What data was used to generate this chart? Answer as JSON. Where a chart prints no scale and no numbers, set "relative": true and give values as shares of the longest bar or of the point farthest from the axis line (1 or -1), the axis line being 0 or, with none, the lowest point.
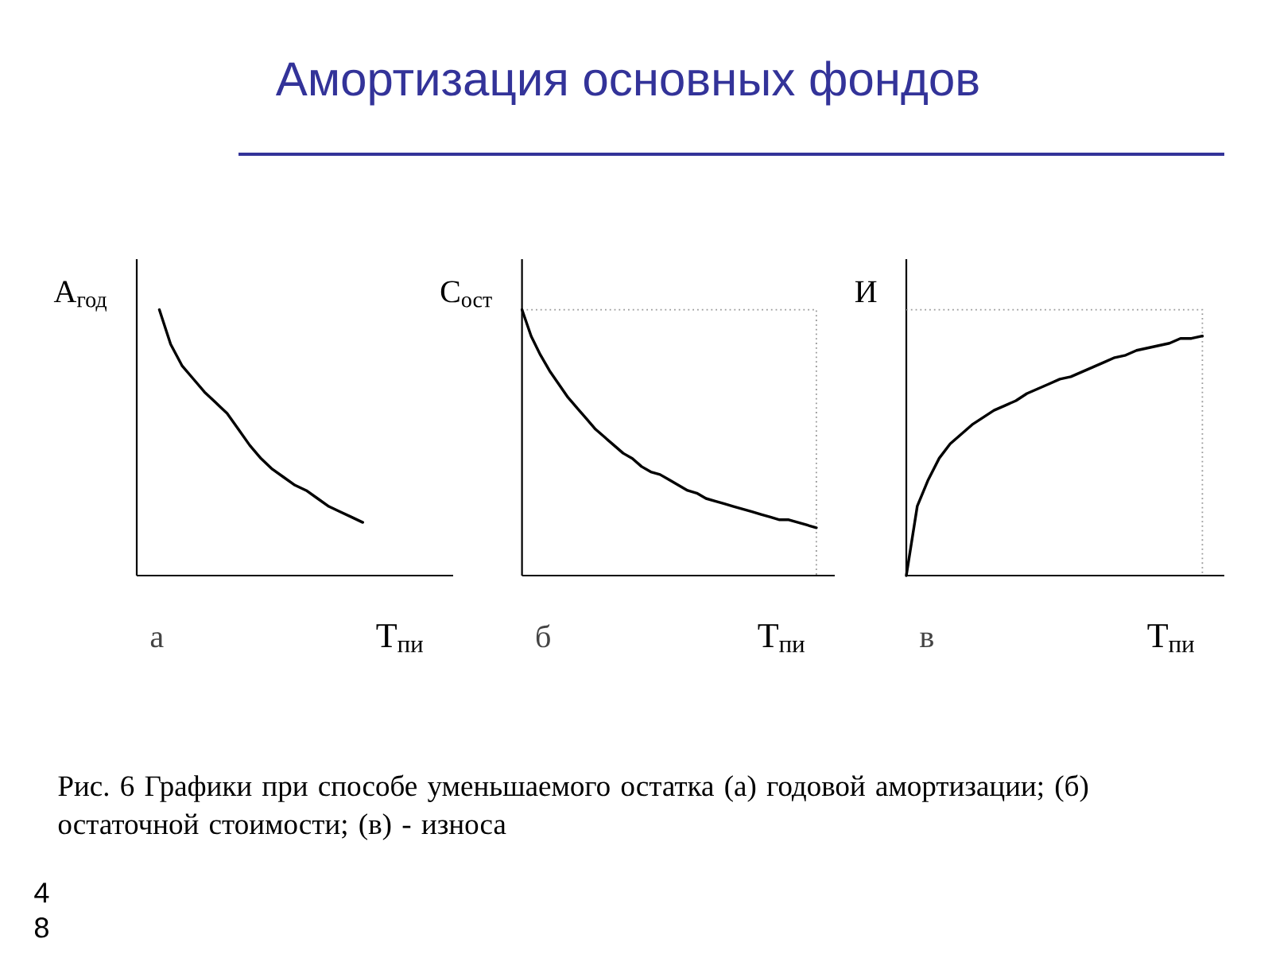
{
  "chart_data": [
    {
      "type": "other",
      "title": "Амортизация основных фондов",
      "annotations": [
        "Рис. 6 Графики при способе уменьшаемого остатка (а) годовой амортизации; (б) остаточной стоимости; (в) - износа",
        "48"
      ]
    },
    {
      "type": "line",
      "title": "а",
      "xlabel": "Т$_{пи}$",
      "ylabel": "А$_{год}$",
      "relative": true,
      "color": "#000000",
      "categories": [
        null,
        null,
        null,
        null,
        null,
        null,
        null,
        null,
        null,
        null,
        null,
        null,
        null,
        null,
        null,
        null,
        null,
        null,
        null,
        null,
        null,
        null,
        null,
        null,
        null,
        null,
        null,
        null,
        null
      ],
      "values": [
        null,
        null,
        1,
        0.87,
        0.79,
        0.74,
        0.69,
        0.65,
        0.61,
        0.55,
        0.49,
        0.44,
        0.4,
        0.37,
        0.34,
        0.32,
        0.29,
        0.26,
        0.24,
        0.22,
        0.2,
        null,
        null,
        null,
        null,
        null,
        null,
        null,
        null
      ]
    },
    {
      "type": "line",
      "title": "б",
      "xlabel": "Т$_{пи}$",
      "ylabel": "С$_{ост}$",
      "relative": true,
      "color": "#000000",
      "categories": [
        null,
        null,
        null,
        null,
        null,
        null,
        null,
        null,
        null,
        null,
        null,
        null,
        null,
        null,
        null,
        null,
        null,
        null,
        null,
        null,
        null,
        null,
        null,
        null,
        null,
        null,
        null,
        null,
        null,
        null,
        null,
        null,
        null,
        null,
        null
      ],
      "values": [
        1,
        0.9,
        0.83,
        0.77,
        0.72,
        0.67,
        0.63,
        0.59,
        0.55,
        0.52,
        0.49,
        0.46,
        0.44,
        0.41,
        0.39,
        0.38,
        0.36,
        0.34,
        0.32,
        0.31,
        0.29,
        0.28,
        0.27,
        0.26,
        0.25,
        0.24,
        0.23,
        0.22,
        0.21,
        0.21,
        0.2,
        0.19,
        0.18,
        null,
        null
      ],
      "ref_lines": [
        {
          "axis": "y",
          "value": 1,
          "line_style": "dotted",
          "color": "#999999"
        }
      ]
    },
    {
      "type": "line",
      "title": "в",
      "xlabel": "Т$_{пи}$",
      "ylabel": "И",
      "relative": true,
      "color": "#000000",
      "categories": [
        null,
        null,
        null,
        null,
        null,
        null,
        null,
        null,
        null,
        null,
        null,
        null,
        null,
        null,
        null,
        null,
        null,
        null,
        null,
        null,
        null,
        null,
        null,
        null,
        null,
        null,
        null,
        null,
        null,
        null
      ],
      "values": [
        0,
        0.29,
        0.4,
        0.49,
        0.55,
        0.59,
        0.63,
        0.66,
        0.69,
        0.71,
        0.73,
        0.76,
        0.78,
        0.8,
        0.82,
        0.83,
        0.85,
        0.87,
        0.89,
        0.91,
        0.92,
        0.94,
        0.95,
        0.96,
        0.97,
        0.99,
        0.99,
        1,
        null,
        null
      ],
      "ref_lines": [
        {
          "axis": "y",
          "value": 1.11,
          "line_style": "dotted",
          "color": "#999999"
        }
      ]
    }
  ]
}
